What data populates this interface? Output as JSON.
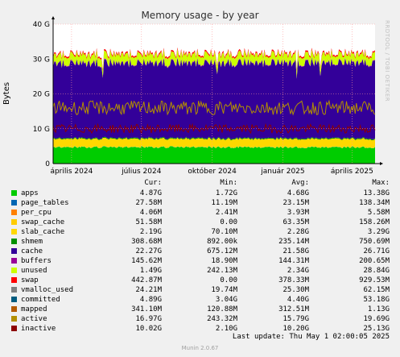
{
  "chart_data": {
    "type": "area",
    "title": "Memory usage - by year",
    "ylabel": "Bytes",
    "side_label": "RRDTOOL / TOBI OETIKER",
    "ylim": [
      0,
      40
    ],
    "y_unit": "G",
    "yticks": [
      {
        "value": 0,
        "label": "0"
      },
      {
        "value": 10,
        "label": "10 G"
      },
      {
        "value": 20,
        "label": "20 G"
      },
      {
        "value": 30,
        "label": "30 G"
      },
      {
        "value": 40,
        "label": "40 G"
      }
    ],
    "x_range": [
      "2024-03-08",
      "2025-05-01"
    ],
    "xticks": [
      {
        "date": "2024-04-01",
        "label": "április 2024"
      },
      {
        "date": "2024-07-01",
        "label": "július 2024"
      },
      {
        "date": "2024-10-01",
        "label": "október 2024"
      },
      {
        "date": "2025-01-01",
        "label": "január 2025"
      },
      {
        "date": "2025-04-01",
        "label": "április 2025"
      }
    ],
    "grid": true,
    "columns": [
      "Cur:",
      "Min:",
      "Avg:",
      "Max:"
    ],
    "series": [
      {
        "name": "apps",
        "color": "#00cc00",
        "approx_level_G": 4.7,
        "cur": "4.87G",
        "min": "1.72G",
        "avg": "4.68G",
        "max": "13.38G"
      },
      {
        "name": "page_tables",
        "color": "#0066b3",
        "approx_level_G": 0.02,
        "cur": "27.58M",
        "min": "11.19M",
        "avg": "23.15M",
        "max": "138.34M"
      },
      {
        "name": "per_cpu",
        "color": "#ff8000",
        "approx_level_G": 0.005,
        "cur": "4.06M",
        "min": "2.41M",
        "avg": "3.93M",
        "max": "5.58M"
      },
      {
        "name": "swap_cache",
        "color": "#ffcc00",
        "approx_level_G": 0.06,
        "cur": "51.58M",
        "min": "0.00",
        "avg": "63.35M",
        "max": "158.26M"
      },
      {
        "name": "slab_cache",
        "color": "#ffd800",
        "approx_level_G": 2.3,
        "cur": "2.19G",
        "min": "70.10M",
        "avg": "2.28G",
        "max": "3.29G"
      },
      {
        "name": "shmem",
        "color": "#008f00",
        "approx_level_G": 0.25,
        "cur": "308.68M",
        "min": "892.00k",
        "avg": "235.14M",
        "max": "750.69M"
      },
      {
        "name": "cache",
        "color": "#330099",
        "approx_level_G": 21.6,
        "cur": "22.27G",
        "min": "675.12M",
        "avg": "21.58G",
        "max": "26.71G"
      },
      {
        "name": "buffers",
        "color": "#990099",
        "approx_level_G": 0.15,
        "cur": "145.62M",
        "min": "18.90M",
        "avg": "144.31M",
        "max": "200.65M"
      },
      {
        "name": "unused",
        "color": "#ccff00",
        "approx_level_G": 2.3,
        "cur": "1.49G",
        "min": "242.13M",
        "avg": "2.34G",
        "max": "28.84G"
      },
      {
        "name": "swap",
        "color": "#ff0000",
        "approx_level_G": 0.4,
        "cur": "442.87M",
        "min": "0.00",
        "avg": "378.33M",
        "max": "929.53M"
      },
      {
        "name": "vmalloc_used",
        "color": "#808080",
        "cur": "24.21M",
        "min": "19.74M",
        "avg": "25.30M",
        "max": "62.15M"
      },
      {
        "name": "committed",
        "color": "#005b7f",
        "cur": "4.89G",
        "min": "3.04G",
        "avg": "4.40G",
        "max": "53.18G"
      },
      {
        "name": "mapped",
        "color": "#b35a00",
        "cur": "341.10M",
        "min": "120.88M",
        "avg": "312.51M",
        "max": "1.13G"
      },
      {
        "name": "active",
        "color": "#b38f00",
        "approx_level_G": 16.0,
        "cur": "16.97G",
        "min": "243.32M",
        "avg": "15.79G",
        "max": "19.69G"
      },
      {
        "name": "inactive",
        "color": "#8c0000",
        "approx_level_G": 10.0,
        "cur": "10.02G",
        "min": "2.10G",
        "avg": "10.20G",
        "max": "25.13G"
      }
    ]
  },
  "last_update": "Last update: Thu May  1 02:00:05 2025",
  "footer": "Munin 2.0.67"
}
